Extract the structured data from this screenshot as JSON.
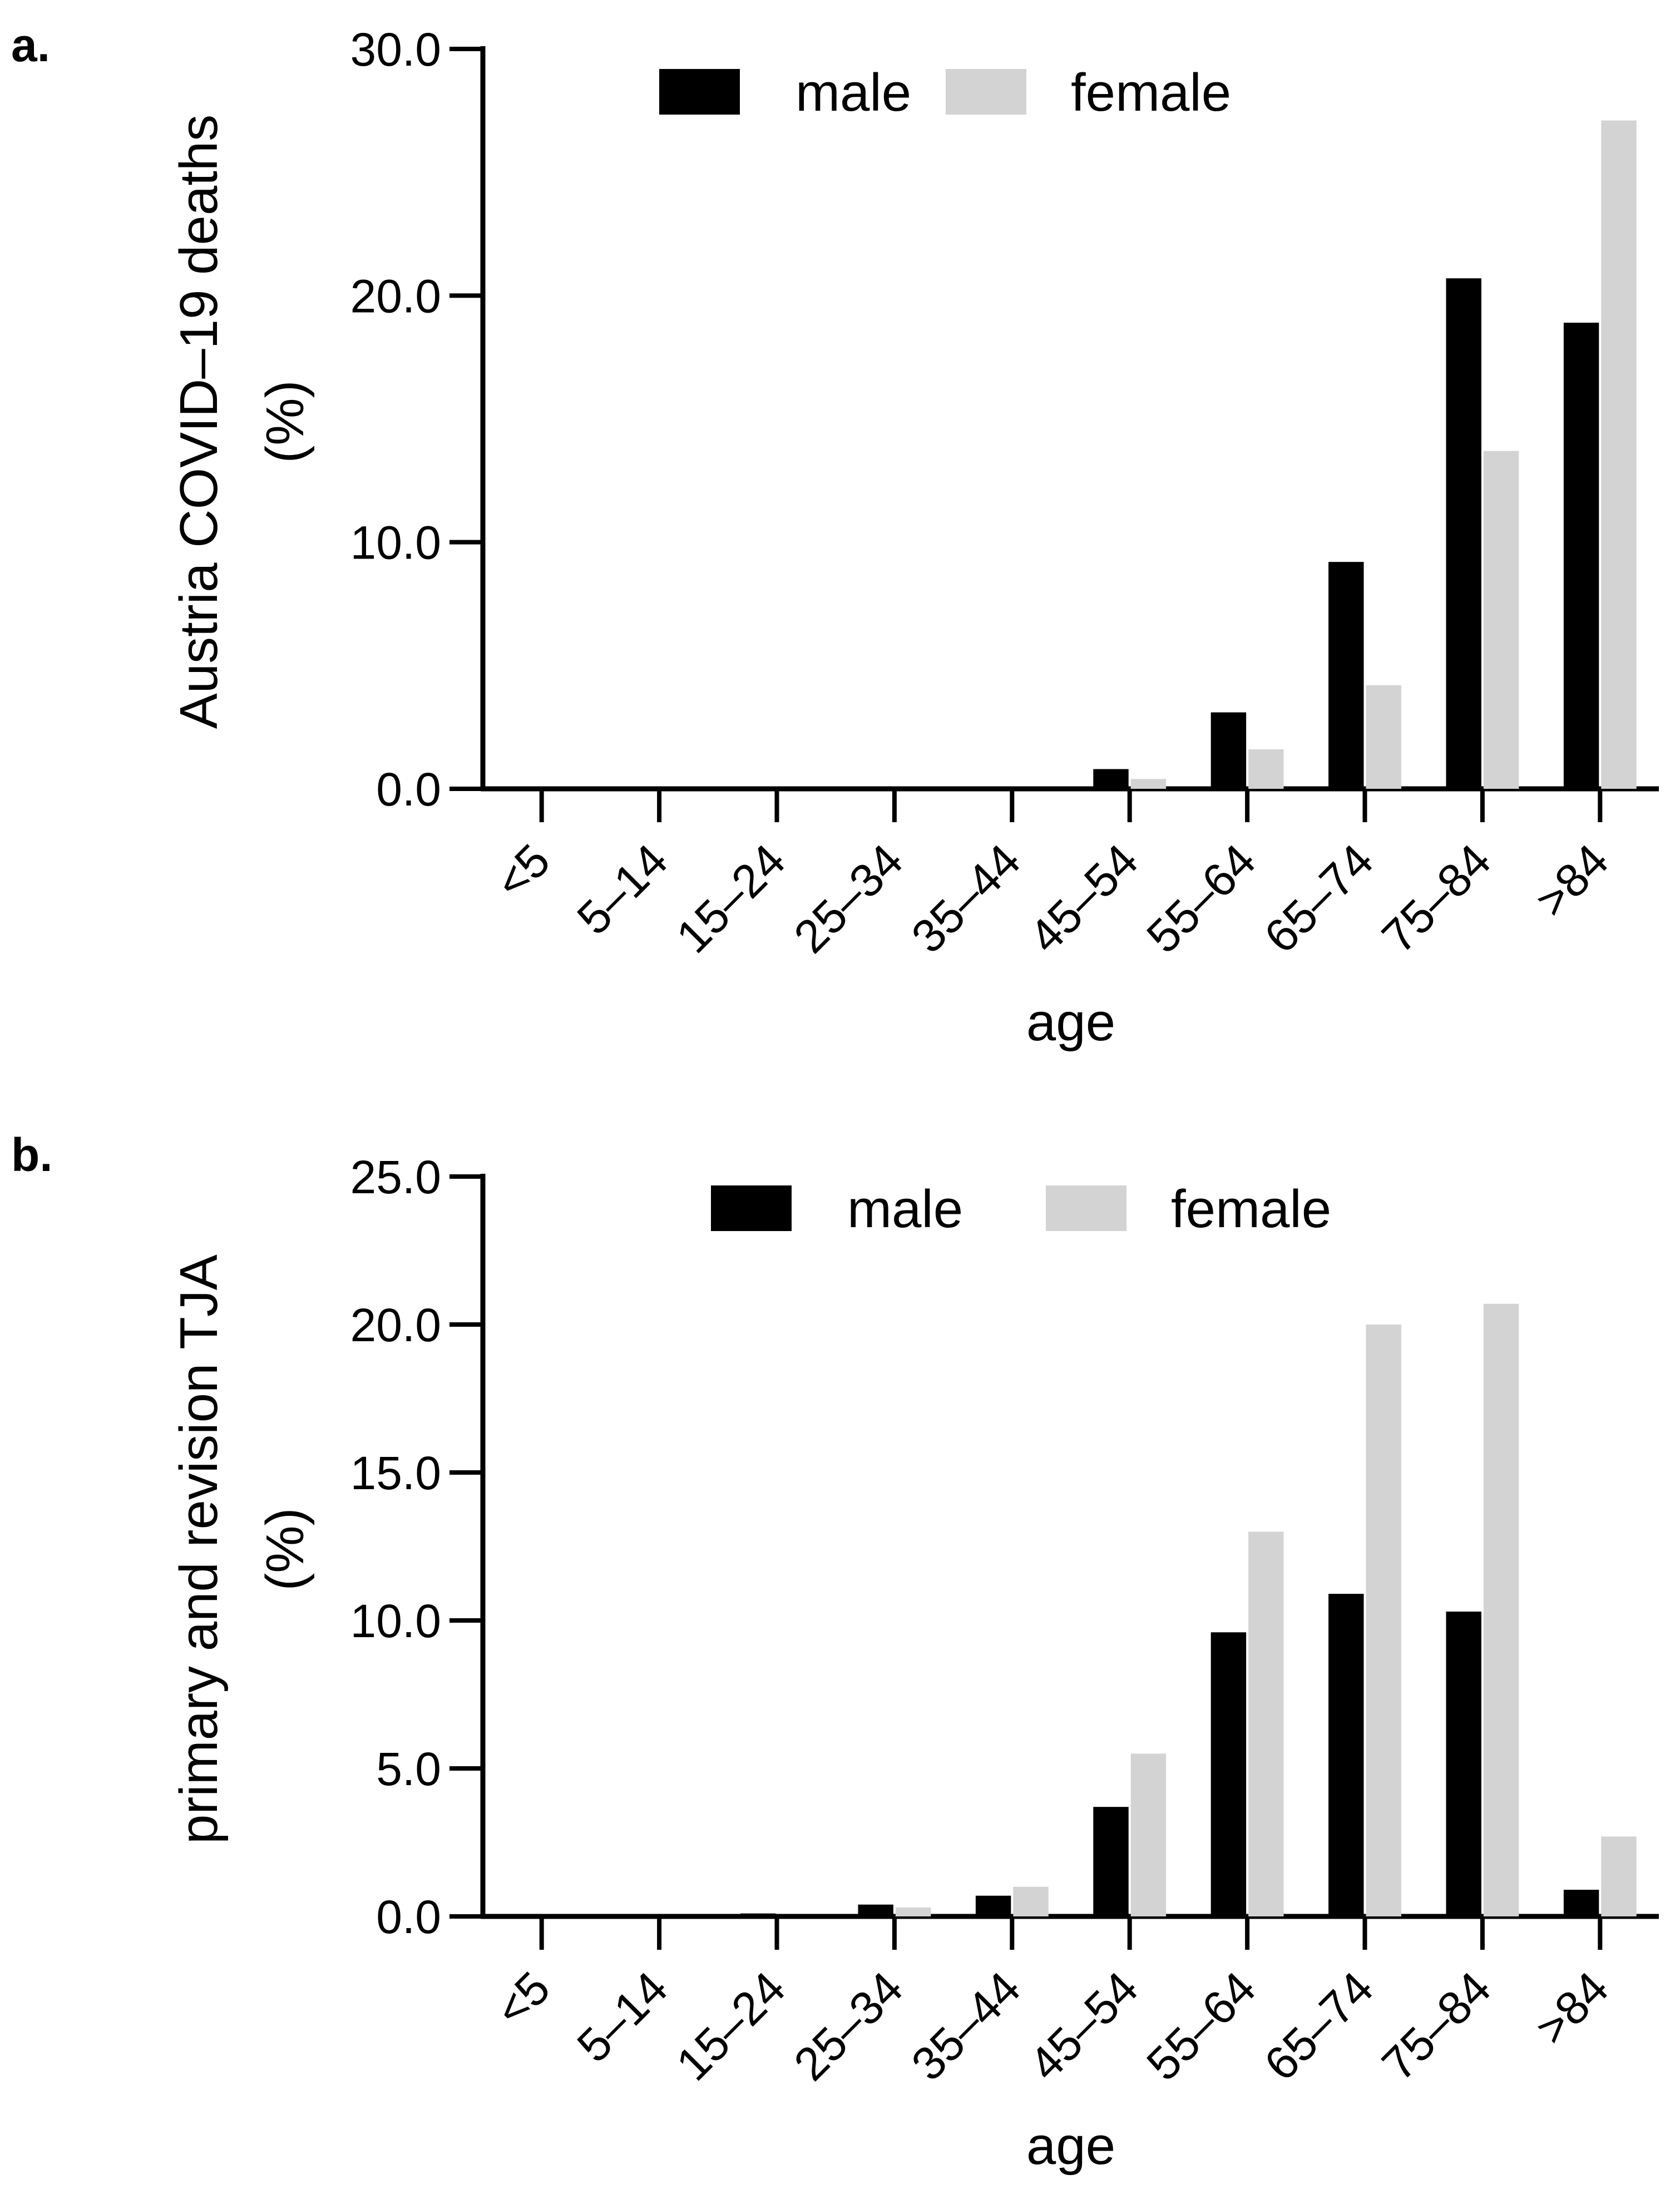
{
  "colors": {
    "male": "#000000",
    "female": "#d3d3d3",
    "axis": "#000000"
  },
  "chart_data": [
    {
      "panel_label": "a.",
      "type": "bar",
      "categories": [
        "<5",
        "5–14",
        "15–24",
        "25–34",
        "35–44",
        "45–54",
        "55–64",
        "65–74",
        "75–84",
        ">84"
      ],
      "series": [
        {
          "name": "male",
          "values": [
            0.0,
            0.0,
            0.0,
            0.0,
            0.1,
            0.8,
            3.1,
            9.2,
            20.7,
            18.9
          ]
        },
        {
          "name": "female",
          "values": [
            0.0,
            0.0,
            0.0,
            0.0,
            0.0,
            0.4,
            1.6,
            4.2,
            13.7,
            27.1
          ]
        }
      ],
      "yticks": [
        "0.0",
        "10.0",
        "20.0",
        "30.0"
      ],
      "ylim": [
        0,
        30
      ],
      "ylabel_line1": "Austria COVID–19 deaths",
      "ylabel_line2": "(%)",
      "xlabel": "age",
      "legend_position": "top"
    },
    {
      "panel_label": "b.",
      "type": "bar",
      "categories": [
        "<5",
        "5–14",
        "15–24",
        "25–34",
        "35–44",
        "45–54",
        "55–64",
        "65–74",
        "75–84",
        ">84"
      ],
      "series": [
        {
          "name": "male",
          "values": [
            0.0,
            0.0,
            0.1,
            0.4,
            0.7,
            3.7,
            9.6,
            10.9,
            10.3,
            0.9
          ]
        },
        {
          "name": "female",
          "values": [
            0.0,
            0.0,
            0.0,
            0.3,
            1.0,
            5.5,
            13.0,
            20.0,
            20.7,
            2.7
          ]
        }
      ],
      "yticks": [
        "0.0",
        "5.0",
        "10.0",
        "15.0",
        "20.0",
        "25.0"
      ],
      "ylim": [
        0,
        25
      ],
      "ylabel_line1": "primary and revision TJA",
      "ylabel_line2": "(%)",
      "xlabel": "age",
      "legend_position": "top"
    }
  ]
}
